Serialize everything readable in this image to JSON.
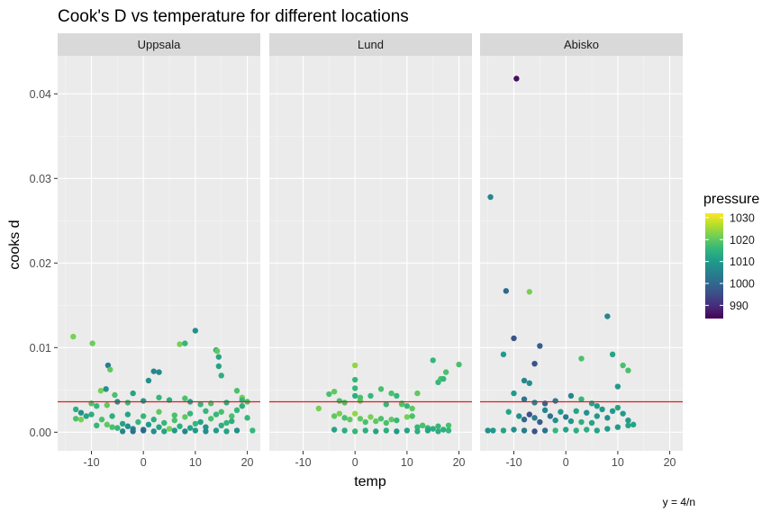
{
  "chart_data": {
    "type": "scatter",
    "title": "Cook's D vs temperature for different locations",
    "xlabel": "temp",
    "ylabel": "cooks d",
    "caption": "y = 4/n",
    "xlim": [
      -16.5,
      22.5
    ],
    "ylim": [
      -0.0022,
      0.0445
    ],
    "x_ticks": [
      -10,
      0,
      10,
      20
    ],
    "y_ticks": [
      0,
      0.01,
      0.02,
      0.03,
      0.04
    ],
    "y_tick_labels": [
      "0.00",
      "0.01",
      "0.02",
      "0.03",
      "0.04"
    ],
    "reference_line": {
      "y": 0.0036,
      "color": "#e31a1c"
    },
    "grid": true,
    "legend": {
      "title": "pressure",
      "position": "right",
      "ticks": [
        990,
        1000,
        1010,
        1020,
        1030
      ],
      "range": [
        984,
        1032
      ]
    },
    "colorscale": [
      "#440154",
      "#482878",
      "#3e4a89",
      "#31688e",
      "#26828e",
      "#1f9e89",
      "#35b779",
      "#6ece58",
      "#b5de2b",
      "#fde725"
    ],
    "panels": [
      {
        "name": "Uppsala",
        "points": [
          [
            -13.5,
            0.0113,
            1022
          ],
          [
            -9.8,
            0.0105,
            1021
          ],
          [
            -6.8,
            0.0079,
            1004
          ],
          [
            -6.4,
            0.0074,
            1020
          ],
          [
            -8.2,
            0.0049,
            1022
          ],
          [
            -7.2,
            0.0051,
            1008
          ],
          [
            -5.5,
            0.0044,
            1018
          ],
          [
            -2,
            0.0046,
            1012
          ],
          [
            1,
            0.0061,
            1008
          ],
          [
            2,
            0.0072,
            1006
          ],
          [
            3,
            0.0071,
            1006
          ],
          [
            7,
            0.0104,
            1022
          ],
          [
            8,
            0.0105,
            1016
          ],
          [
            10,
            0.012,
            1008
          ],
          [
            14,
            0.0097,
            1012
          ],
          [
            14.2,
            0.0096,
            1020
          ],
          [
            14.5,
            0.0089,
            1012
          ],
          [
            14.5,
            0.0078,
            1012
          ],
          [
            15,
            0.0067,
            1014
          ],
          [
            18,
            0.0049,
            1018
          ],
          [
            19,
            0.0041,
            1022
          ],
          [
            -13,
            0.0027,
            1014
          ],
          [
            -13,
            0.0016,
            1018
          ],
          [
            -12,
            0.0015,
            1022
          ],
          [
            -10,
            0.0034,
            1018
          ],
          [
            -9,
            0.0031,
            1016
          ],
          [
            -7,
            0.0032,
            1020
          ],
          [
            -5,
            0.0036,
            1008
          ],
          [
            -3,
            0.0035,
            1016
          ],
          [
            0,
            0.0037,
            1010
          ],
          [
            3,
            0.0041,
            1016
          ],
          [
            5,
            0.0038,
            1014
          ],
          [
            8,
            0.004,
            1018
          ],
          [
            9,
            0.0036,
            1012
          ],
          [
            11,
            0.0033,
            1016
          ],
          [
            13,
            0.0034,
            1018
          ],
          [
            16,
            0.0035,
            1014
          ],
          [
            19,
            0.0038,
            1016
          ],
          [
            20,
            0.0036,
            1018
          ],
          [
            -12,
            0.0023,
            1008
          ],
          [
            -11,
            0.0019,
            1012
          ],
          [
            -10,
            0.0021,
            1014
          ],
          [
            -9,
            0.0008,
            1016
          ],
          [
            -8,
            0.0015,
            1018
          ],
          [
            -7,
            0.0009,
            1020
          ],
          [
            -6,
            0.0006,
            1018
          ],
          [
            -5,
            0.0005,
            1016
          ],
          [
            -4,
            0.001,
            1012
          ],
          [
            -3,
            0.0007,
            1008
          ],
          [
            -2,
            0.0004,
            1006
          ],
          [
            -1,
            0.0012,
            1016
          ],
          [
            0,
            0.0003,
            1004
          ],
          [
            1,
            0.0009,
            1010
          ],
          [
            2,
            0.0015,
            1014
          ],
          [
            3,
            0.0006,
            1012
          ],
          [
            4,
            0.0011,
            1016
          ],
          [
            5,
            0.0004,
            1022
          ],
          [
            6,
            0.0014,
            1018
          ],
          [
            7,
            0.0007,
            1014
          ],
          [
            8,
            0.0018,
            1020
          ],
          [
            9,
            0.0005,
            1012
          ],
          [
            10,
            0.001,
            1016
          ],
          [
            11,
            0.0012,
            1012
          ],
          [
            12,
            0.0006,
            1008
          ],
          [
            13,
            0.0016,
            1018
          ],
          [
            14,
            0.0021,
            1016
          ],
          [
            15,
            0.0008,
            1014
          ],
          [
            16,
            0.0011,
            1016
          ],
          [
            17,
            0.0019,
            1018
          ],
          [
            18,
            0.0026,
            1016
          ],
          [
            19,
            0.0031,
            1014
          ],
          [
            20,
            0.0017,
            1016
          ],
          [
            -4,
            0.0001,
            1006
          ],
          [
            -2,
            0.0001,
            1002
          ],
          [
            0,
            0.0002,
            1000
          ],
          [
            2,
            0.0001,
            1008
          ],
          [
            4,
            0.0001,
            1012
          ],
          [
            6,
            0.0002,
            1010
          ],
          [
            8,
            0.0001,
            1006
          ],
          [
            10,
            0.0002,
            1010
          ],
          [
            12,
            0.0001,
            1008
          ],
          [
            14,
            0.0002,
            1010
          ],
          [
            16,
            0.0001,
            1012
          ],
          [
            18,
            0.0002,
            1008
          ],
          [
            21,
            0.0002,
            1016
          ],
          [
            -6,
            0.0019,
            1014
          ],
          [
            -3,
            0.0021,
            1012
          ],
          [
            0,
            0.0019,
            1016
          ],
          [
            3,
            0.0024,
            1020
          ],
          [
            6,
            0.002,
            1018
          ],
          [
            9,
            0.0022,
            1016
          ],
          [
            12,
            0.0025,
            1016
          ],
          [
            15,
            0.0024,
            1018
          ],
          [
            17,
            0.0013,
            1014
          ]
        ]
      },
      {
        "name": "Lund",
        "points": [
          [
            -7,
            0.0028,
            1022
          ],
          [
            -5,
            0.0045,
            1018
          ],
          [
            -4,
            0.0048,
            1020
          ],
          [
            -3,
            0.0037,
            1018
          ],
          [
            -2,
            0.0035,
            1018
          ],
          [
            0,
            0.0079,
            1024
          ],
          [
            0,
            0.0062,
            1016
          ],
          [
            0,
            0.0052,
            1016
          ],
          [
            0,
            0.0043,
            1014
          ],
          [
            1,
            0.0037,
            1020
          ],
          [
            1,
            0.0041,
            1018
          ],
          [
            3,
            0.0043,
            1016
          ],
          [
            5,
            0.0051,
            1018
          ],
          [
            6,
            0.0033,
            1016
          ],
          [
            7,
            0.0046,
            1018
          ],
          [
            8,
            0.0043,
            1016
          ],
          [
            9,
            0.0033,
            1020
          ],
          [
            10,
            0.0018,
            1022
          ],
          [
            11,
            0.0028,
            1020
          ],
          [
            12,
            0.0046,
            1020
          ],
          [
            15,
            0.0085,
            1016
          ],
          [
            16,
            0.0059,
            1016
          ],
          [
            16.5,
            0.0063,
            1018
          ],
          [
            17,
            0.0063,
            1016
          ],
          [
            17.5,
            0.0071,
            1018
          ],
          [
            20,
            0.008,
            1018
          ],
          [
            -4,
            0.0019,
            1020
          ],
          [
            -3,
            0.0022,
            1022
          ],
          [
            -2,
            0.0017,
            1018
          ],
          [
            -1,
            0.0015,
            1020
          ],
          [
            0,
            0.0022,
            1024
          ],
          [
            1,
            0.0016,
            1020
          ],
          [
            2,
            0.0012,
            1018
          ],
          [
            3,
            0.0018,
            1022
          ],
          [
            4,
            0.0013,
            1020
          ],
          [
            5,
            0.0016,
            1018
          ],
          [
            6,
            0.0011,
            1018
          ],
          [
            7,
            0.0015,
            1020
          ],
          [
            8,
            0.0014,
            1016
          ],
          [
            9,
            0.0034,
            1018
          ],
          [
            10,
            0.0031,
            1016
          ],
          [
            11,
            0.0019,
            1018
          ],
          [
            12,
            0.0006,
            1016
          ],
          [
            13,
            0.0008,
            1018
          ],
          [
            14,
            0.0005,
            1016
          ],
          [
            15,
            0.0004,
            1014
          ],
          [
            16,
            0.0007,
            1016
          ],
          [
            17,
            0.0003,
            1014
          ],
          [
            18,
            0.0008,
            1018
          ],
          [
            -4,
            0.0003,
            1012
          ],
          [
            -2,
            0.0002,
            1014
          ],
          [
            0,
            0.0001,
            1016
          ],
          [
            2,
            0.0002,
            1014
          ],
          [
            4,
            0.0001,
            1012
          ],
          [
            6,
            0.0002,
            1014
          ],
          [
            8,
            0.0001,
            1010
          ],
          [
            10,
            0.0002,
            1012
          ],
          [
            12,
            0.0001,
            1014
          ],
          [
            14,
            0.0002,
            1012
          ],
          [
            16,
            0.0001,
            1014
          ],
          [
            18,
            0.0002,
            1016
          ]
        ]
      },
      {
        "name": "Abisko",
        "points": [
          [
            -9.5,
            0.0418,
            986
          ],
          [
            -14.5,
            0.0278,
            1006
          ],
          [
            -11.5,
            0.0167,
            1000
          ],
          [
            -7,
            0.0166,
            1022
          ],
          [
            -12,
            0.0092,
            1010
          ],
          [
            -10,
            0.0111,
            996
          ],
          [
            -5,
            0.0102,
            998
          ],
          [
            -8,
            0.0061,
            1006
          ],
          [
            -7,
            0.0058,
            1008
          ],
          [
            -6,
            0.0081,
            996
          ],
          [
            3,
            0.0087,
            1018
          ],
          [
            8,
            0.0137,
            1006
          ],
          [
            9,
            0.0092,
            1012
          ],
          [
            11,
            0.0079,
            1018
          ],
          [
            10,
            0.0054,
            1010
          ],
          [
            12,
            0.0073,
            1018
          ],
          [
            -10,
            0.0046,
            1010
          ],
          [
            -8,
            0.0039,
            1002
          ],
          [
            -6,
            0.0035,
            1006
          ],
          [
            -4,
            0.0034,
            1000
          ],
          [
            -2,
            0.0037,
            1004
          ],
          [
            1,
            0.0043,
            1006
          ],
          [
            3,
            0.0039,
            1016
          ],
          [
            5,
            0.0034,
            1012
          ],
          [
            6,
            0.0031,
            1010
          ],
          [
            -11,
            0.0024,
            1012
          ],
          [
            -9,
            0.0019,
            1008
          ],
          [
            -8,
            0.0015,
            1000
          ],
          [
            -7,
            0.0021,
            996
          ],
          [
            -6,
            0.0017,
            1004
          ],
          [
            -5,
            0.0012,
            998
          ],
          [
            -4,
            0.0026,
            1006
          ],
          [
            -3,
            0.0019,
            1002
          ],
          [
            -2,
            0.0014,
            1008
          ],
          [
            -1,
            0.0024,
            1010
          ],
          [
            0,
            0.0018,
            1004
          ],
          [
            1,
            0.0013,
            1010
          ],
          [
            2,
            0.0025,
            1012
          ],
          [
            3,
            0.0012,
            1014
          ],
          [
            4,
            0.0023,
            1008
          ],
          [
            5,
            0.0011,
            1012
          ],
          [
            6,
            0.0019,
            1010
          ],
          [
            7,
            0.0027,
            1010
          ],
          [
            8,
            0.0017,
            1008
          ],
          [
            9,
            0.0025,
            1010
          ],
          [
            10,
            0.0029,
            1012
          ],
          [
            11,
            0.0022,
            1010
          ],
          [
            12,
            0.0014,
            1010
          ],
          [
            13,
            0.0009,
            1012
          ],
          [
            -15,
            0.0002,
            1008
          ],
          [
            -14,
            0.0002,
            1010
          ],
          [
            -12,
            0.0002,
            1012
          ],
          [
            -10,
            0.0003,
            1008
          ],
          [
            -8,
            0.0002,
            1004
          ],
          [
            -6,
            0.0001,
            996
          ],
          [
            -4,
            0.0002,
            1002
          ],
          [
            -2,
            0.0002,
            1016
          ],
          [
            0,
            0.0003,
            1012
          ],
          [
            2,
            0.0002,
            1014
          ],
          [
            4,
            0.0003,
            1014
          ],
          [
            6,
            0.0002,
            1012
          ],
          [
            8,
            0.0004,
            1010
          ],
          [
            10,
            0.0006,
            1010
          ],
          [
            12,
            0.0008,
            1012
          ]
        ]
      }
    ]
  }
}
